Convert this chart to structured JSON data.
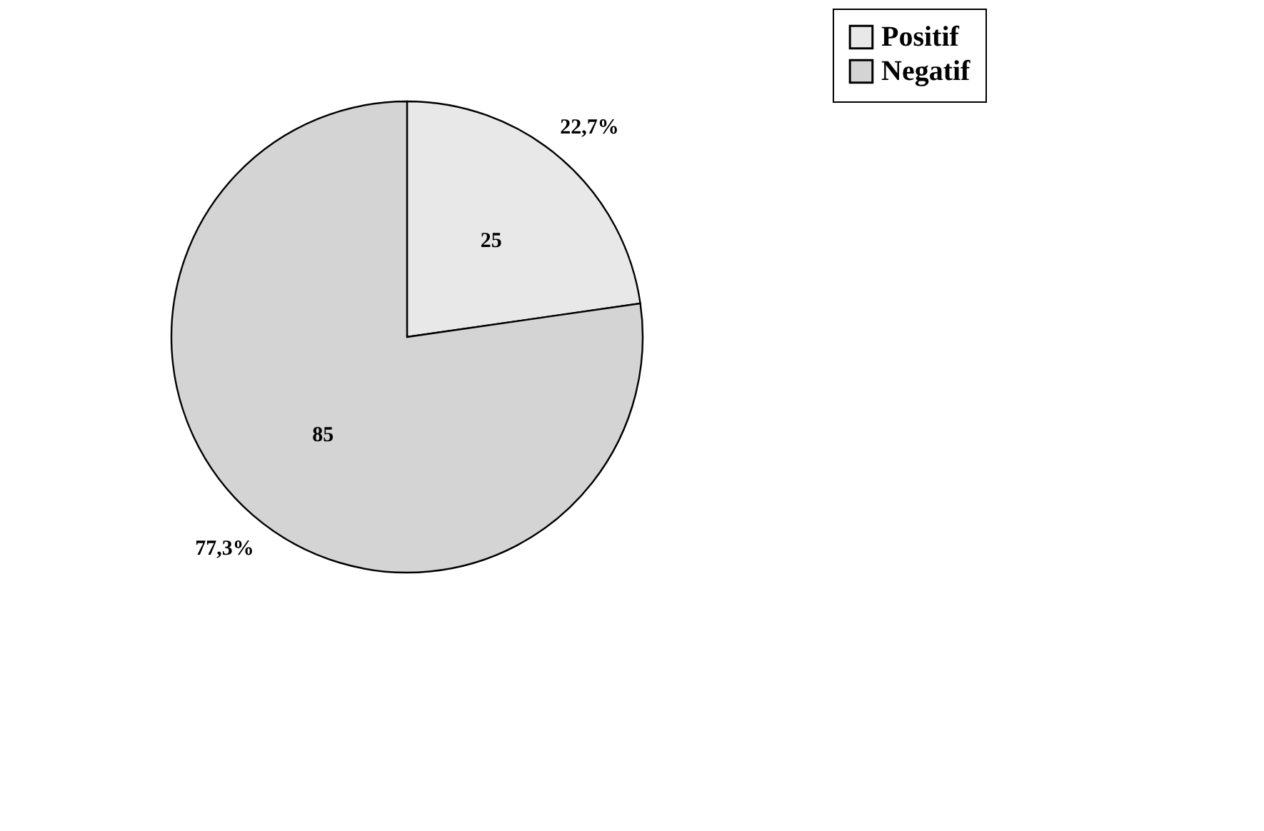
{
  "chart_data": {
    "type": "pie",
    "categories": [
      "Positif",
      "Negatif"
    ],
    "values": [
      25,
      85
    ],
    "colors": [
      "#e8e8e8",
      "#d4d4d4"
    ],
    "data_labels": true,
    "legend": "right",
    "annotations": [
      "22,7%",
      "77,3%"
    ]
  }
}
